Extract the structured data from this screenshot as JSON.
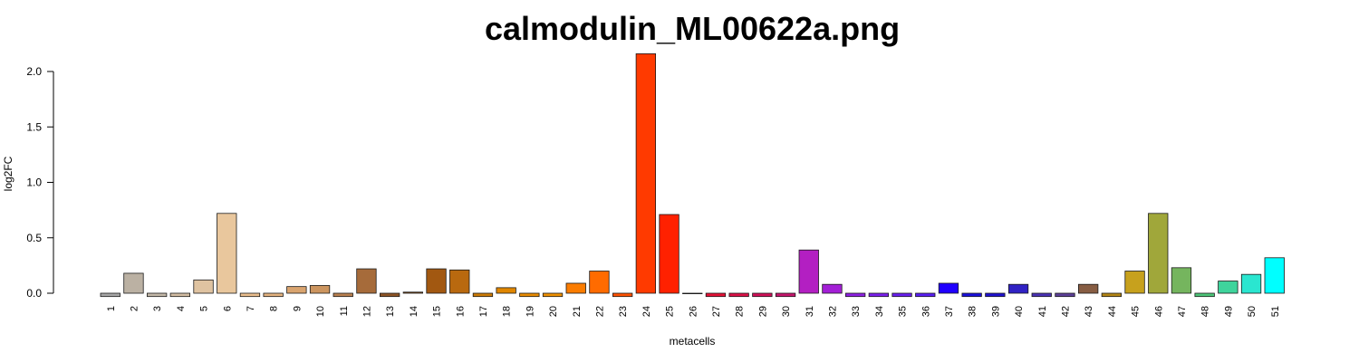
{
  "chart_data": {
    "type": "bar",
    "title": "calmodulin_ML00622a.png",
    "xlabel": "metacells",
    "ylabel": "log2FC",
    "ylim": [
      0,
      2.0
    ],
    "yticks": [
      "0.0",
      "0.5",
      "1.0",
      "1.5",
      "2.0"
    ],
    "grid": false,
    "legend": "none",
    "categories": [
      "1",
      "2",
      "3",
      "4",
      "5",
      "6",
      "7",
      "8",
      "9",
      "10",
      "11",
      "12",
      "13",
      "14",
      "15",
      "16",
      "17",
      "18",
      "19",
      "20",
      "21",
      "22",
      "23",
      "24",
      "25",
      "26",
      "27",
      "28",
      "29",
      "30",
      "31",
      "32",
      "33",
      "34",
      "35",
      "36",
      "37",
      "38",
      "39",
      "40",
      "41",
      "42",
      "43",
      "44",
      "45",
      "46",
      "47",
      "48",
      "49",
      "50",
      "51"
    ],
    "values": [
      -0.03,
      0.18,
      -0.03,
      -0.03,
      0.12,
      0.72,
      -0.03,
      -0.03,
      0.06,
      0.07,
      -0.03,
      0.22,
      -0.03,
      0.01,
      0.22,
      0.21,
      -0.03,
      0.05,
      -0.03,
      -0.03,
      0.09,
      0.2,
      -0.03,
      2.16,
      0.71,
      0.0,
      -0.03,
      -0.03,
      -0.03,
      -0.03,
      0.39,
      0.08,
      -0.03,
      -0.03,
      -0.03,
      -0.03,
      0.09,
      -0.03,
      -0.03,
      0.08,
      -0.03,
      -0.03,
      0.08,
      -0.03,
      0.2,
      0.72,
      0.23,
      -0.03,
      0.11,
      0.17,
      0.32
    ],
    "colors": [
      "#a7a7a7",
      "#bbb1a3",
      "#c3b8a8",
      "#d3bda3",
      "#dfc3a1",
      "#e9c79d",
      "#ebbf8e",
      "#e4b380",
      "#d9a46f",
      "#cc955f",
      "#ba8150",
      "#a66b3a",
      "#8e5526",
      "#8a4e0f",
      "#a25811",
      "#b9690f",
      "#cd7b06",
      "#e08600",
      "#e98c00",
      "#ef9103",
      "#fb7c00",
      "#ff6b00",
      "#ff5300",
      "#ff3a00",
      "#ff2100",
      "#f41525",
      "#e51237",
      "#dd1148",
      "#d11159",
      "#c6166d",
      "#b31fc2",
      "#a31fd6",
      "#8f22e4",
      "#7b20ee",
      "#6a1ff1",
      "#5a1ef4",
      "#2000ff",
      "#1a10dd",
      "#2012d0",
      "#3022c4",
      "#4a32b5",
      "#5d4098",
      "#875d43",
      "#b48615",
      "#c7a11d",
      "#a0a73a",
      "#75b55e",
      "#4ec579",
      "#3fd49c",
      "#2ae6d0",
      "#00ffff"
    ]
  }
}
